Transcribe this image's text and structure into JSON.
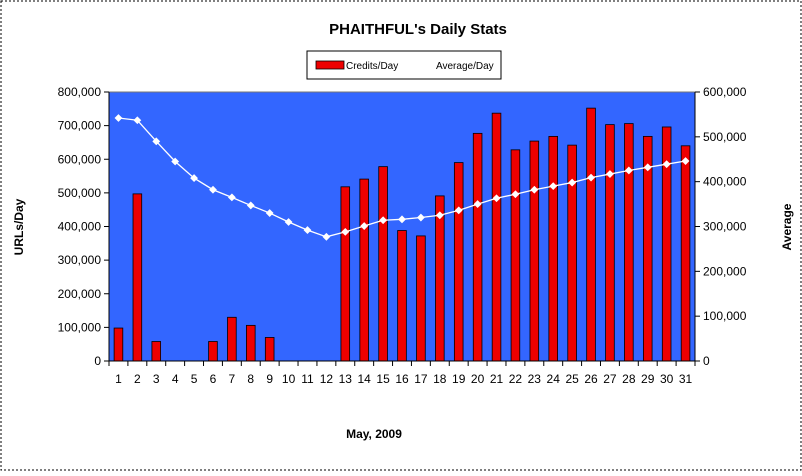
{
  "chart_data": {
    "type": "bar",
    "title": "PHAITHFUL's Daily Stats",
    "xlabel": "May, 2009",
    "ylabel": "URLs/Day",
    "y2label": "Average",
    "categories": [
      "1",
      "2",
      "3",
      "4",
      "5",
      "6",
      "7",
      "8",
      "9",
      "10",
      "11",
      "12",
      "13",
      "14",
      "15",
      "16",
      "17",
      "18",
      "19",
      "20",
      "21",
      "22",
      "23",
      "24",
      "25",
      "26",
      "27",
      "28",
      "29",
      "30",
      "31"
    ],
    "ylim": [
      0,
      800000
    ],
    "y2lim": [
      0,
      600000
    ],
    "yticks": [
      "0",
      "100,000",
      "200,000",
      "300,000",
      "400,000",
      "500,000",
      "600,000",
      "700,000",
      "800,000"
    ],
    "y2ticks": [
      "0",
      "100,000",
      "200,000",
      "300,000",
      "400,000",
      "500,000",
      "600,000"
    ],
    "series": [
      {
        "name": "Credits/Day",
        "type": "bar",
        "axis": "left",
        "color": "#ee0000",
        "values": [
          98000,
          497000,
          58000,
          0,
          0,
          58000,
          130000,
          106000,
          70000,
          0,
          0,
          0,
          518000,
          541000,
          578000,
          388000,
          372000,
          491000,
          590000,
          677000,
          737000,
          628000,
          654000,
          668000,
          642000,
          752000,
          703000,
          706000,
          668000,
          696000,
          640000
        ]
      },
      {
        "name": "Average/Day",
        "type": "line",
        "axis": "right",
        "color": "#ffffff",
        "values": [
          542000,
          537000,
          490000,
          445000,
          408000,
          382000,
          365000,
          347000,
          330000,
          310000,
          292000,
          277000,
          288000,
          301000,
          314000,
          316000,
          320000,
          325000,
          336000,
          350000,
          363000,
          372000,
          382000,
          390000,
          398000,
          409000,
          417000,
          425000,
          432000,
          439000,
          446000
        ]
      }
    ],
    "legend_position": "top-center",
    "plot_background": "#3366ff",
    "grid": false
  }
}
